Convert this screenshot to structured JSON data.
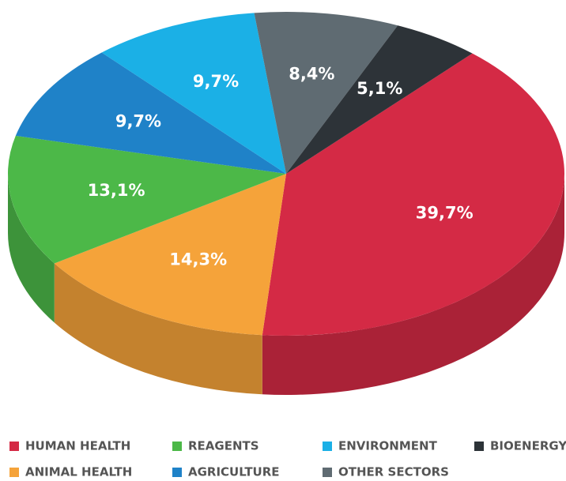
{
  "chart_data": {
    "type": "pie",
    "categories": [
      "HUMAN HEALTH",
      "ANIMAL HEALTH",
      "REAGENTS",
      "AGRICULTURE",
      "ENVIRONMENT",
      "OTHER SECTORS",
      "BIOENERGY"
    ],
    "values": [
      39.7,
      14.3,
      13.1,
      9.7,
      9.7,
      8.4,
      5.1
    ],
    "value_labels": [
      "39,7%",
      "14,3%",
      "13,1%",
      "9,7%",
      "9,7%",
      "8,4%",
      "5,1%"
    ],
    "colors": [
      "#d42a45",
      "#f5a33a",
      "#4cb848",
      "#1f82c8",
      "#1bb0e6",
      "#5f6b72",
      "#2d3338"
    ]
  }
}
